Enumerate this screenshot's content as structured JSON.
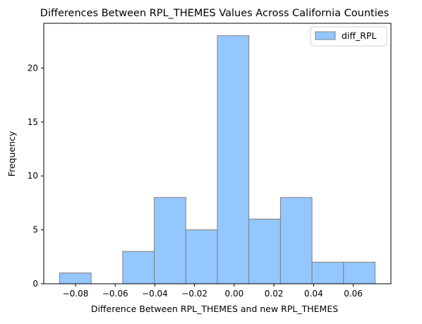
{
  "chart_data": {
    "type": "histogram",
    "title": "Differences Between RPL_THEMES Values Across California Counties",
    "xlabel": "Difference Between RPL_THEMES and new RPL_THEMES",
    "ylabel": "Frequency",
    "legend": {
      "label": "diff_RPL",
      "position": "top-right"
    },
    "bin_edges": [
      -0.088,
      -0.0721,
      -0.0562,
      -0.0403,
      -0.0244,
      -0.0085,
      0.0074,
      0.0233,
      0.0392,
      0.0551,
      0.071
    ],
    "counts": [
      1,
      0,
      3,
      8,
      5,
      23,
      6,
      8,
      2,
      2
    ],
    "xlim": [
      -0.096,
      0.079
    ],
    "ylim": [
      0,
      24.15
    ],
    "xticks": [
      -0.08,
      -0.06,
      -0.04,
      -0.02,
      0.0,
      0.02,
      0.04,
      0.06
    ],
    "xtick_labels": [
      "−0.08",
      "−0.06",
      "−0.04",
      "−0.02",
      "0.00",
      "0.02",
      "0.04",
      "0.06"
    ],
    "yticks": [
      0,
      5,
      10,
      15,
      20
    ],
    "ytick_labels": [
      "0",
      "5",
      "10",
      "15",
      "20"
    ],
    "colors": {
      "bar_fill": "#94c7fe",
      "bar_edge": "#808080"
    },
    "grid": false
  }
}
